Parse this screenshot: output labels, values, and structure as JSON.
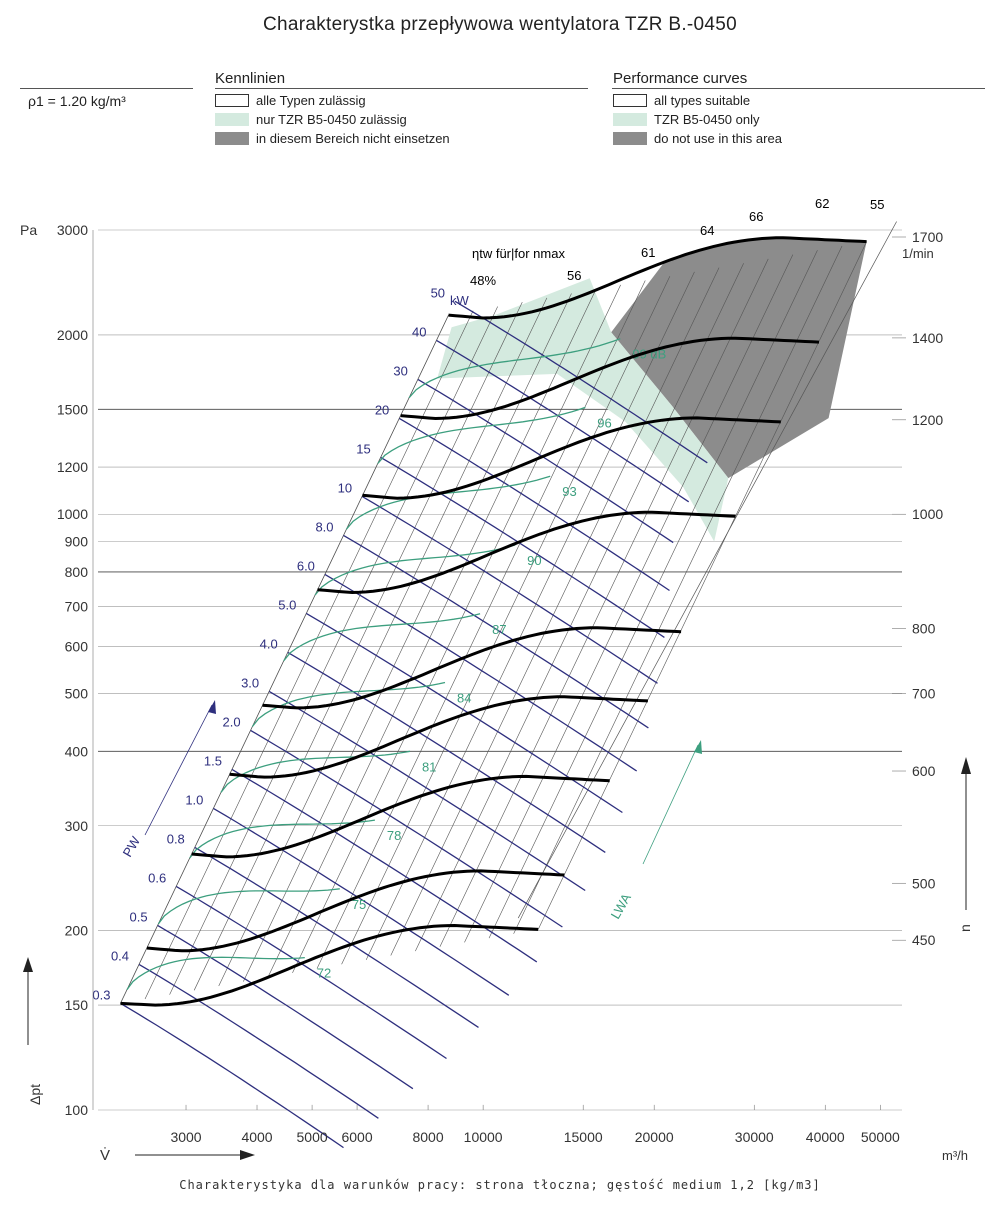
{
  "title": "Charakterystka przepływowa wentylatora TZR B.-0450",
  "density": "ρ1 = 1.20 kg/m³",
  "legend_de": {
    "heading": "Kennlinien",
    "items": [
      "alle Typen zulässig",
      "nur TZR B5-0450 zulässig",
      "in diesem Bereich nicht einsetzen"
    ]
  },
  "legend_en": {
    "heading": "Performance curves",
    "items": [
      "all types suitable",
      "TZR B5-0450 only",
      "do not use in this area"
    ]
  },
  "footer": "Charakterystyka dla warunków pracy: strona tłoczna; gęstość medium 1,2 [kg/m3]",
  "colors": {
    "speed_curve": "#000000",
    "power_line": "#2e2f7e",
    "sound_curve": "#3d9f7f",
    "green_zone": "#d4eadf",
    "grey_zone": "#8c8c8c",
    "grid": "#777777"
  },
  "chart_data": {
    "type": "line",
    "title": "Charakterystka przepływowa wentylatora TZR B.-0450",
    "xlabel": "V̇",
    "x_unit": "m³/h",
    "ylabel": "Δpt",
    "y_unit": "Pa",
    "right_axis_label": "n",
    "right_axis_unit": "1/min",
    "x_scale": "log",
    "y_scale": "log",
    "xlim": [
      2100,
      52000
    ],
    "ylim": [
      100,
      3000
    ],
    "x_ticks": [
      3000,
      4000,
      5000,
      6000,
      8000,
      10000,
      15000,
      20000,
      30000,
      40000,
      50000
    ],
    "x_tick_labels": [
      "3000",
      "4000",
      "5000",
      "6000",
      "8000",
      "10000",
      "15000",
      "20000",
      "30000",
      "40000",
      "50000"
    ],
    "y_ticks": [
      100,
      150,
      200,
      300,
      400,
      500,
      600,
      700,
      800,
      900,
      1000,
      1200,
      1500,
      2000,
      3000
    ],
    "y_tick_labels": [
      "100",
      "150",
      "200",
      "300",
      "400",
      "500",
      "600",
      "700",
      "800",
      "900",
      "1000",
      "1200",
      "1500",
      "2000",
      "3000"
    ],
    "speed_curves": [
      {
        "n": 450,
        "label": "450",
        "vmin": 2300,
        "vmax": 12500,
        "p_start": 151,
        "p_dip": 150,
        "p_hump": 204,
        "p_end": 201
      },
      {
        "n": 500,
        "label": "500",
        "vmin": 2560,
        "vmax": 13900,
        "p_start": 187,
        "p_dip": 185,
        "p_hump": 252,
        "p_end": 248
      },
      {
        "n": 600,
        "label": "600",
        "vmin": 3070,
        "vmax": 16700,
        "p_start": 269,
        "p_dip": 266,
        "p_hump": 363,
        "p_end": 357
      },
      {
        "n": 700,
        "label": "700",
        "vmin": 3580,
        "vmax": 19500,
        "p_start": 366,
        "p_dip": 362,
        "p_hump": 494,
        "p_end": 486
      },
      {
        "n": 800,
        "label": "800",
        "vmin": 4090,
        "vmax": 22300,
        "p_start": 478,
        "p_dip": 473,
        "p_hump": 645,
        "p_end": 635
      },
      {
        "n": 1000,
        "label": "1000",
        "vmin": 5110,
        "vmax": 27800,
        "p_start": 747,
        "p_dip": 739,
        "p_hump": 1008,
        "p_end": 992
      },
      {
        "n": 1200,
        "label": "1200",
        "vmin": 6130,
        "vmax": 33400,
        "p_start": 1076,
        "p_dip": 1064,
        "p_hump": 1451,
        "p_end": 1429
      },
      {
        "n": 1400,
        "label": "1400",
        "vmin": 7160,
        "vmax": 39000,
        "p_start": 1464,
        "p_dip": 1448,
        "p_hump": 1975,
        "p_end": 1945
      },
      {
        "n": 1700,
        "label": "1700",
        "vmin": 8690,
        "vmax": 47300,
        "p_start": 2159,
        "p_dip": 2135,
        "p_hump": 2912,
        "p_end": 2868
      }
    ],
    "efficiency_lines": [
      {
        "label": "48%",
        "v_ref": 2450
      },
      {
        "label": "56",
        "v_ref": 2900
      },
      {
        "label": "61",
        "v_ref": 3500
      },
      {
        "label": "64",
        "v_ref": 4200
      },
      {
        "label": "66",
        "v_ref": 5100
      },
      {
        "label": "62",
        "v_ref": 6500
      },
      {
        "label": "55",
        "v_ref": 8200
      }
    ],
    "efficiency_heading": "ηtw für|for nmax",
    "power_lines": [
      {
        "label": "0.3",
        "kw": 0.3
      },
      {
        "label": "0.4",
        "kw": 0.4
      },
      {
        "label": "0.5",
        "kw": 0.5
      },
      {
        "label": "0.6",
        "kw": 0.6
      },
      {
        "label": "0.8",
        "kw": 0.8
      },
      {
        "label": "1.0",
        "kw": 1.0
      },
      {
        "label": "1.5",
        "kw": 1.5
      },
      {
        "label": "2.0",
        "kw": 2.0
      },
      {
        "label": "3.0",
        "kw": 3.0
      },
      {
        "label": "4.0",
        "kw": 4.0
      },
      {
        "label": "5.0",
        "kw": 5.0
      },
      {
        "label": "6.0",
        "kw": 6.0
      },
      {
        "label": "8.0",
        "kw": 8.0
      },
      {
        "label": "10",
        "kw": 10
      },
      {
        "label": "15",
        "kw": 15
      },
      {
        "label": "20",
        "kw": 20
      },
      {
        "label": "30",
        "kw": 30
      },
      {
        "label": "40",
        "kw": 40
      },
      {
        "label": "50",
        "kw": 50
      }
    ],
    "power_unit": "kW",
    "power_axis_label": "PW",
    "sound_curves": [
      {
        "label": "72",
        "db": 72
      },
      {
        "label": "75",
        "db": 75
      },
      {
        "label": "78",
        "db": 78
      },
      {
        "label": "81",
        "db": 81
      },
      {
        "label": "84",
        "db": 84
      },
      {
        "label": "87",
        "db": 87
      },
      {
        "label": "90",
        "db": 90
      },
      {
        "label": "93",
        "db": 93
      },
      {
        "label": "96",
        "db": 96
      },
      {
        "label": "99 dB",
        "db": 99
      }
    ],
    "sound_axis_label": "LWA",
    "legend_position": "top"
  }
}
